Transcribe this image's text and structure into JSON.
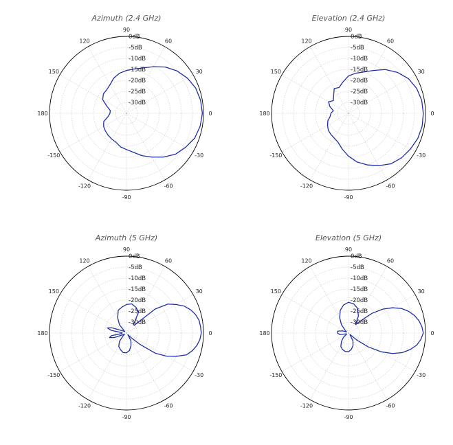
{
  "chart_data": [
    {
      "type": "polar",
      "title": "Azimuth (2.4 GHz)",
      "angle_unit": "degrees",
      "radial_unit": "dB",
      "rlim": [
        -35,
        0
      ],
      "radial_ticks": [
        0,
        -5,
        -10,
        -15,
        -20,
        -25,
        -30
      ],
      "radial_tick_labels": [
        "0dB",
        "-5dB",
        "-10dB",
        "-15dB",
        "-20dB",
        "-25dB",
        "-30dB"
      ],
      "angle_tick_labels": [
        "0",
        "30",
        "60",
        "90",
        "120",
        "150",
        "180",
        "-150",
        "-120",
        "-90",
        "-60",
        "-30"
      ],
      "grid": true,
      "series_color": "#1f2ea6",
      "angles": [
        0,
        10,
        20,
        30,
        40,
        50,
        60,
        70,
        80,
        90,
        100,
        110,
        120,
        130,
        140,
        150,
        160,
        170,
        180,
        -170,
        -160,
        -150,
        -140,
        -130,
        -120,
        -110,
        -100,
        -90,
        -80,
        -70,
        -60,
        -50,
        -40,
        -30,
        -20,
        -10
      ],
      "values": [
        -0.5,
        -0.8,
        -1.5,
        -3,
        -5,
        -7.5,
        -10.5,
        -13,
        -14.5,
        -15.5,
        -16.5,
        -18,
        -20,
        -21,
        -21.3,
        -22.5,
        -25.5,
        -27.5,
        -27.5,
        -26.5,
        -24,
        -23,
        -22.5,
        -22,
        -21.5,
        -21,
        -19.5,
        -18.5,
        -17,
        -14.5,
        -12,
        -9,
        -6,
        -4,
        -2,
        -1
      ]
    },
    {
      "type": "polar",
      "title": "Elevation (2.4 GHz)",
      "angle_unit": "degrees",
      "radial_unit": "dB",
      "rlim": [
        -35,
        0
      ],
      "radial_ticks": [
        0,
        -5,
        -10,
        -15,
        -20,
        -25,
        -30
      ],
      "radial_tick_labels": [
        "0dB",
        "-5dB",
        "-10dB",
        "-15dB",
        "-20dB",
        "-25dB",
        "-30dB"
      ],
      "angle_tick_labels": [
        "0",
        "30",
        "60",
        "90",
        "120",
        "150",
        "180",
        "-150",
        "-120",
        "-90",
        "-60",
        "-30"
      ],
      "grid": true,
      "series_color": "#1f2ea6",
      "angles": [
        0,
        10,
        20,
        30,
        40,
        50,
        60,
        70,
        80,
        90,
        100,
        110,
        120,
        130,
        140,
        150,
        160,
        170,
        180,
        -170,
        -160,
        -150,
        -140,
        -130,
        -120,
        -110,
        -100,
        -90,
        -80,
        -70,
        -60,
        -50,
        -40,
        -30,
        -20,
        -10
      ],
      "values": [
        -1,
        -1.2,
        -2,
        -3.5,
        -6,
        -9,
        -12.5,
        -15,
        -16.5,
        -18,
        -20.5,
        -22.5,
        -22,
        -24.5,
        -26,
        -24.5,
        -26,
        -28,
        -27,
        -26.5,
        -25,
        -24,
        -23,
        -22.5,
        -22,
        -21,
        -18.5,
        -15.5,
        -12.5,
        -10,
        -7.5,
        -5,
        -3.5,
        -2.5,
        -1.5,
        -1
      ]
    },
    {
      "type": "polar",
      "title": "Azimuth (5 GHz)",
      "angle_unit": "degrees",
      "radial_unit": "dB",
      "rlim": [
        -35,
        0
      ],
      "radial_ticks": [
        0,
        -5,
        -10,
        -15,
        -20,
        -25,
        -30
      ],
      "radial_tick_labels": [
        "0dB",
        "-5dB",
        "-10dB",
        "-15dB",
        "-20dB",
        "-25dB",
        "-30dB"
      ],
      "angle_tick_labels": [
        "0",
        "30",
        "60",
        "90",
        "120",
        "150",
        "180",
        "-150",
        "-120",
        "-90",
        "-60",
        "-30"
      ],
      "grid": true,
      "series_color": "#1f2ea6",
      "angles": [
        0,
        5,
        10,
        15,
        20,
        25,
        30,
        35,
        40,
        45,
        50,
        60,
        70,
        80,
        90,
        100,
        110,
        120,
        130,
        140,
        150,
        160,
        165,
        170,
        175,
        180,
        -175,
        -170,
        -165,
        -160,
        -150,
        -140,
        -130,
        -120,
        -110,
        -100,
        -90,
        -80,
        -70,
        -60,
        -50,
        -45,
        -40,
        -35,
        -30,
        -25,
        -20,
        -15,
        -10,
        -5
      ],
      "values": [
        -1,
        -1.2,
        -1.5,
        -2.5,
        -4,
        -6,
        -9,
        -12,
        -18,
        -30,
        -30,
        -24,
        -22.5,
        -21.5,
        -22,
        -23,
        -24,
        -27,
        -30,
        -34,
        -33,
        -28,
        -26,
        -28,
        -33,
        -33,
        -33,
        -28,
        -27,
        -29,
        -34,
        -33,
        -30,
        -28,
        -27,
        -26,
        -26,
        -27,
        -29,
        -31,
        -34,
        -32,
        -27,
        -19,
        -14,
        -10,
        -6,
        -4,
        -2.5,
        -1.5
      ]
    },
    {
      "type": "polar",
      "title": "Elevation (5 GHz)",
      "angle_unit": "degrees",
      "radial_unit": "dB",
      "rlim": [
        -35,
        0
      ],
      "radial_ticks": [
        0,
        -5,
        -10,
        -15,
        -20,
        -25,
        -30
      ],
      "radial_tick_labels": [
        "0dB",
        "-5dB",
        "-10dB",
        "-15dB",
        "-20dB",
        "-25dB",
        "-30dB"
      ],
      "angle_tick_labels": [
        "0",
        "30",
        "60",
        "90",
        "120",
        "150",
        "180",
        "-150",
        "-120",
        "-90",
        "-60",
        "-30"
      ],
      "grid": true,
      "series_color": "#1f2ea6",
      "angles": [
        0,
        5,
        10,
        15,
        20,
        25,
        30,
        35,
        40,
        45,
        50,
        60,
        70,
        80,
        90,
        100,
        110,
        120,
        130,
        140,
        150,
        160,
        170,
        180,
        -170,
        -160,
        -150,
        -140,
        -130,
        -120,
        -110,
        -100,
        -90,
        -80,
        -70,
        -60,
        -50,
        -45,
        -40,
        -35,
        -30,
        -25,
        -20,
        -15,
        -10,
        -5
      ],
      "values": [
        -1,
        -1.5,
        -2.5,
        -4,
        -6,
        -8.5,
        -12,
        -16,
        -21,
        -27,
        -30,
        -26,
        -23,
        -21.5,
        -21,
        -22,
        -24,
        -27,
        -30,
        -33,
        -34,
        -32,
        -30,
        -30,
        -31,
        -34,
        -34,
        -32,
        -30,
        -28,
        -27,
        -26.5,
        -26.5,
        -27.5,
        -29,
        -31,
        -34,
        -34,
        -30,
        -24,
        -18,
        -13,
        -9,
        -6,
        -3.5,
        -2
      ]
    }
  ]
}
